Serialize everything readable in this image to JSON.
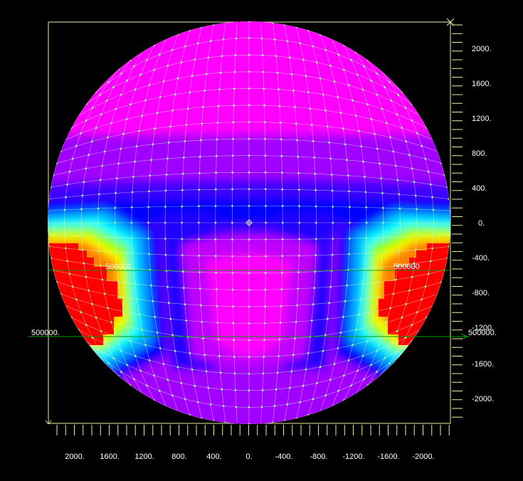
{
  "x_axis": {
    "tick_labels": [
      "2000.",
      "1600.",
      "1200.",
      "800.",
      "400.",
      "0.",
      "-400.",
      "-800.",
      "-1200.",
      "-1600.",
      "-2000."
    ]
  },
  "y_axis": {
    "tick_labels": [
      "2000.",
      "1600.",
      "1200.",
      "800.",
      "400.",
      "0.",
      "-400.",
      "-800.",
      "-1200.",
      "-1600.",
      "-2000."
    ]
  },
  "annotations": {
    "left_contour_label": "500000",
    "right_contour_label": "500000",
    "left_line_label": "500000.",
    "right_line_label": "500000."
  },
  "colors": {
    "background": "#000000",
    "axis": "#e8f0a0",
    "mesh_lines": "#ffffff",
    "mesh_nodes": "#90ff90",
    "section_line": "#00a000",
    "contour_scale": [
      "#ff00ff",
      "#a000ff",
      "#4000ff",
      "#0000ff",
      "#00a0ff",
      "#00ffff",
      "#00ff80",
      "#80ff00",
      "#ffff00",
      "#ff8000",
      "#ff0000"
    ]
  }
}
